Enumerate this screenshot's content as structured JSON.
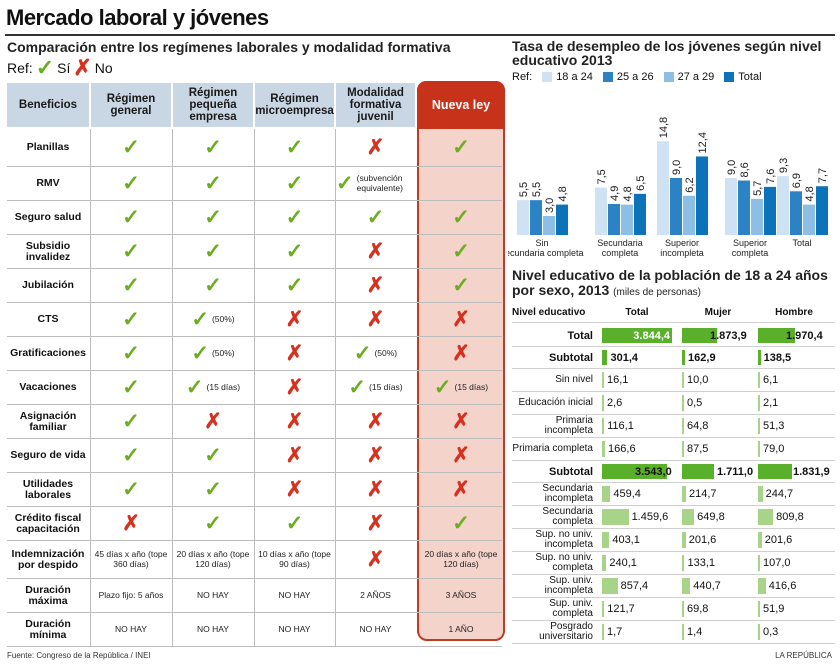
{
  "title": "Mercado laboral y jóvenes",
  "left_subtitle": "Comparación entre los regímenes laborales y modalidad formativa",
  "ref": {
    "label": "Ref:",
    "yes": "Sí",
    "no": "No"
  },
  "table": {
    "headers": [
      "Beneficios",
      "Régimen general",
      "Régimen pequeña empresa",
      "Régimen microempresa",
      "Modalidad formativa juvenil",
      "Nueva ley"
    ],
    "rows": [
      {
        "label": "Planillas",
        "cells": [
          {
            "m": "y"
          },
          {
            "m": "y"
          },
          {
            "m": "y"
          },
          {
            "m": "n"
          },
          {
            "m": "y"
          }
        ]
      },
      {
        "label": "RMV",
        "cells": [
          {
            "m": "y"
          },
          {
            "m": "y"
          },
          {
            "m": "y"
          },
          {
            "m": "y",
            "note": "(subvención equivalente)"
          },
          {}
        ]
      },
      {
        "label": "Seguro salud",
        "cells": [
          {
            "m": "y"
          },
          {
            "m": "y"
          },
          {
            "m": "y"
          },
          {
            "m": "y"
          },
          {
            "m": "y"
          }
        ]
      },
      {
        "label": "Subsidio invalidez",
        "cells": [
          {
            "m": "y"
          },
          {
            "m": "y"
          },
          {
            "m": "y"
          },
          {
            "m": "n"
          },
          {
            "m": "y"
          }
        ]
      },
      {
        "label": "Jubilación",
        "cells": [
          {
            "m": "y"
          },
          {
            "m": "y"
          },
          {
            "m": "y"
          },
          {
            "m": "n"
          },
          {
            "m": "y"
          }
        ]
      },
      {
        "label": "CTS",
        "cells": [
          {
            "m": "y"
          },
          {
            "m": "y",
            "note": "(50%)"
          },
          {
            "m": "n"
          },
          {
            "m": "n"
          },
          {
            "m": "n"
          }
        ]
      },
      {
        "label": "Gratificaciones",
        "cells": [
          {
            "m": "y"
          },
          {
            "m": "y",
            "note": "(50%)"
          },
          {
            "m": "n"
          },
          {
            "m": "y",
            "note": "(50%)"
          },
          {
            "m": "n"
          }
        ]
      },
      {
        "label": "Vacaciones",
        "cells": [
          {
            "m": "y"
          },
          {
            "m": "y",
            "note": "(15 días)"
          },
          {
            "m": "n"
          },
          {
            "m": "y",
            "note": "(15 días)"
          },
          {
            "m": "y",
            "note": "(15 días)"
          }
        ]
      },
      {
        "label": "Asignación familiar",
        "cells": [
          {
            "m": "y"
          },
          {
            "m": "n"
          },
          {
            "m": "n"
          },
          {
            "m": "n"
          },
          {
            "m": "n"
          }
        ]
      },
      {
        "label": "Seguro de vida",
        "cells": [
          {
            "m": "y"
          },
          {
            "m": "y"
          },
          {
            "m": "n"
          },
          {
            "m": "n"
          },
          {
            "m": "n"
          }
        ]
      },
      {
        "label": "Utilidades laborales",
        "cells": [
          {
            "m": "y"
          },
          {
            "m": "y"
          },
          {
            "m": "n"
          },
          {
            "m": "n"
          },
          {
            "m": "n"
          }
        ]
      },
      {
        "label": "Crédito fiscal capacitación",
        "cells": [
          {
            "m": "n"
          },
          {
            "m": "y"
          },
          {
            "m": "y"
          },
          {
            "m": "n"
          },
          {
            "m": "y"
          }
        ]
      },
      {
        "label": "Indemnización por despido",
        "cells": [
          {
            "t": "45 días x año (tope 360 días)"
          },
          {
            "t": "20 días x año (tope 120 días)"
          },
          {
            "t": "10 días x año (tope 90 días)"
          },
          {
            "m": "n"
          },
          {
            "t": "20 días x año (tope 120 días)"
          }
        ]
      },
      {
        "label": "Duración máxima",
        "cells": [
          {
            "t": "Plazo fijo: 5 años"
          },
          {
            "t": "NO HAY"
          },
          {
            "t": "NO HAY"
          },
          {
            "t": "2 AÑOS"
          },
          {
            "t": "3 AÑOS"
          }
        ]
      },
      {
        "label": "Duración mínima",
        "cells": [
          {
            "t": "NO HAY"
          },
          {
            "t": "NO HAY"
          },
          {
            "t": "NO HAY"
          },
          {
            "t": "NO HAY"
          },
          {
            "t": "1 AÑO"
          }
        ]
      }
    ]
  },
  "chart_title": "Tasa de desempleo de los jóvenes según nivel educativo 2013",
  "chart_data": {
    "type": "bar",
    "title": "Tasa de desempleo de los jóvenes según nivel educativo 2013",
    "legend_label": "Ref:",
    "categories": [
      "Sin secundaria completa",
      "Secundaria completa",
      "Superior incompleta",
      "Superior completa",
      "Total"
    ],
    "series": [
      {
        "name": "18 a 24",
        "color": "#cfe2f3",
        "values": [
          5.5,
          7.5,
          14.8,
          9.0,
          9.3
        ],
        "labels": [
          "5,5",
          "7,5",
          "14,8",
          "9,0",
          "9,3"
        ]
      },
      {
        "name": "25 a 26",
        "color": "#2b82c4",
        "values": [
          5.5,
          4.9,
          9.0,
          8.6,
          6.9
        ],
        "labels": [
          "5,5",
          "4,9",
          "9,0",
          "8,6",
          "6,9"
        ]
      },
      {
        "name": "27 a 29",
        "color": "#8dbfe6",
        "values": [
          3.0,
          4.8,
          6.2,
          5.7,
          4.8
        ],
        "labels": [
          "3,0",
          "4,8",
          "6,2",
          "5,7",
          "4,8"
        ]
      },
      {
        "name": "Total",
        "color": "#0c73b8",
        "values": [
          4.8,
          6.5,
          12.4,
          7.6,
          7.7
        ],
        "labels": [
          "4,8",
          "6,5",
          "12,4",
          "7,6",
          "7,7"
        ]
      }
    ],
    "ylim": [
      0,
      15
    ]
  },
  "right_table": {
    "title": "Nivel educativo de la población de 18 a 24 años por sexo, 2013",
    "units": "(miles de personas)",
    "headers": [
      "Nivel educativo",
      "Total",
      "Mujer",
      "Hombre"
    ],
    "max": 3844.4,
    "rows": [
      {
        "label": "Total",
        "bold": true,
        "type": "total",
        "total": 3844.4,
        "mujer": 1873.9,
        "hombre": 1970.4,
        "t": "3.844,4",
        "m": "1.873,9",
        "h": "1.970,4"
      },
      {
        "label": "Subtotal",
        "bold": true,
        "type": "sub",
        "total": 301.4,
        "mujer": 162.9,
        "hombre": 138.5,
        "t": "301,4",
        "m": "162,9",
        "h": "138,5"
      },
      {
        "label": "Sin nivel",
        "type": "item",
        "total": 16.1,
        "mujer": 10.0,
        "hombre": 6.1,
        "t": "16,1",
        "m": "10,0",
        "h": "6,1"
      },
      {
        "label": "Educación inicial",
        "type": "item",
        "total": 2.6,
        "mujer": 0.5,
        "hombre": 2.1,
        "t": "2,6",
        "m": "0,5",
        "h": "2,1"
      },
      {
        "label": "Primaria incompleta",
        "type": "item",
        "total": 116.1,
        "mujer": 64.8,
        "hombre": 51.3,
        "t": "116,1",
        "m": "64,8",
        "h": "51,3"
      },
      {
        "label": "Primaria completa",
        "type": "item",
        "total": 166.6,
        "mujer": 87.5,
        "hombre": 79.0,
        "t": "166,6",
        "m": "87,5",
        "h": "79,0"
      },
      {
        "label": "Subtotal",
        "bold": true,
        "type": "sub",
        "total": 3543.0,
        "mujer": 1711.0,
        "hombre": 1831.9,
        "t": "3.543,0",
        "m": "1.711,0",
        "h": "1.831,9"
      },
      {
        "label": "Secundaria incompleta",
        "type": "item",
        "total": 459.4,
        "mujer": 214.7,
        "hombre": 244.7,
        "t": "459,4",
        "m": "214,7",
        "h": "244,7"
      },
      {
        "label": "Secundaria completa",
        "type": "item",
        "total": 1459.6,
        "mujer": 649.8,
        "hombre": 809.8,
        "t": "1.459,6",
        "m": "649,8",
        "h": "809,8"
      },
      {
        "label": "Sup. no univ. incompleta",
        "type": "item",
        "total": 403.1,
        "mujer": 201.6,
        "hombre": 201.6,
        "t": "403,1",
        "m": "201,6",
        "h": "201,6"
      },
      {
        "label": "Sup. no univ. completa",
        "type": "item",
        "total": 240.1,
        "mujer": 133.1,
        "hombre": 107.0,
        "t": "240,1",
        "m": "133,1",
        "h": "107,0"
      },
      {
        "label": "Sup. univ. incompleta",
        "type": "item",
        "total": 857.4,
        "mujer": 440.7,
        "hombre": 416.6,
        "t": "857,4",
        "m": "440,7",
        "h": "416,6"
      },
      {
        "label": "Sup. univ. completa",
        "type": "item",
        "total": 121.7,
        "mujer": 69.8,
        "hombre": 51.9,
        "t": "121,7",
        "m": "69,8",
        "h": "51,9"
      },
      {
        "label": "Posgrado universitario",
        "type": "item",
        "total": 1.7,
        "mujer": 1.4,
        "hombre": 0.3,
        "t": "1,7",
        "m": "1,4",
        "h": "0,3"
      }
    ]
  },
  "source": "Fuente: Congreso de la República / INEI",
  "brand": "LA REPÚBLICA",
  "colors": {
    "check": "#6aad1d",
    "cross": "#d6311e",
    "green_dark": "#5ab02a",
    "green_light": "#a7d488"
  }
}
